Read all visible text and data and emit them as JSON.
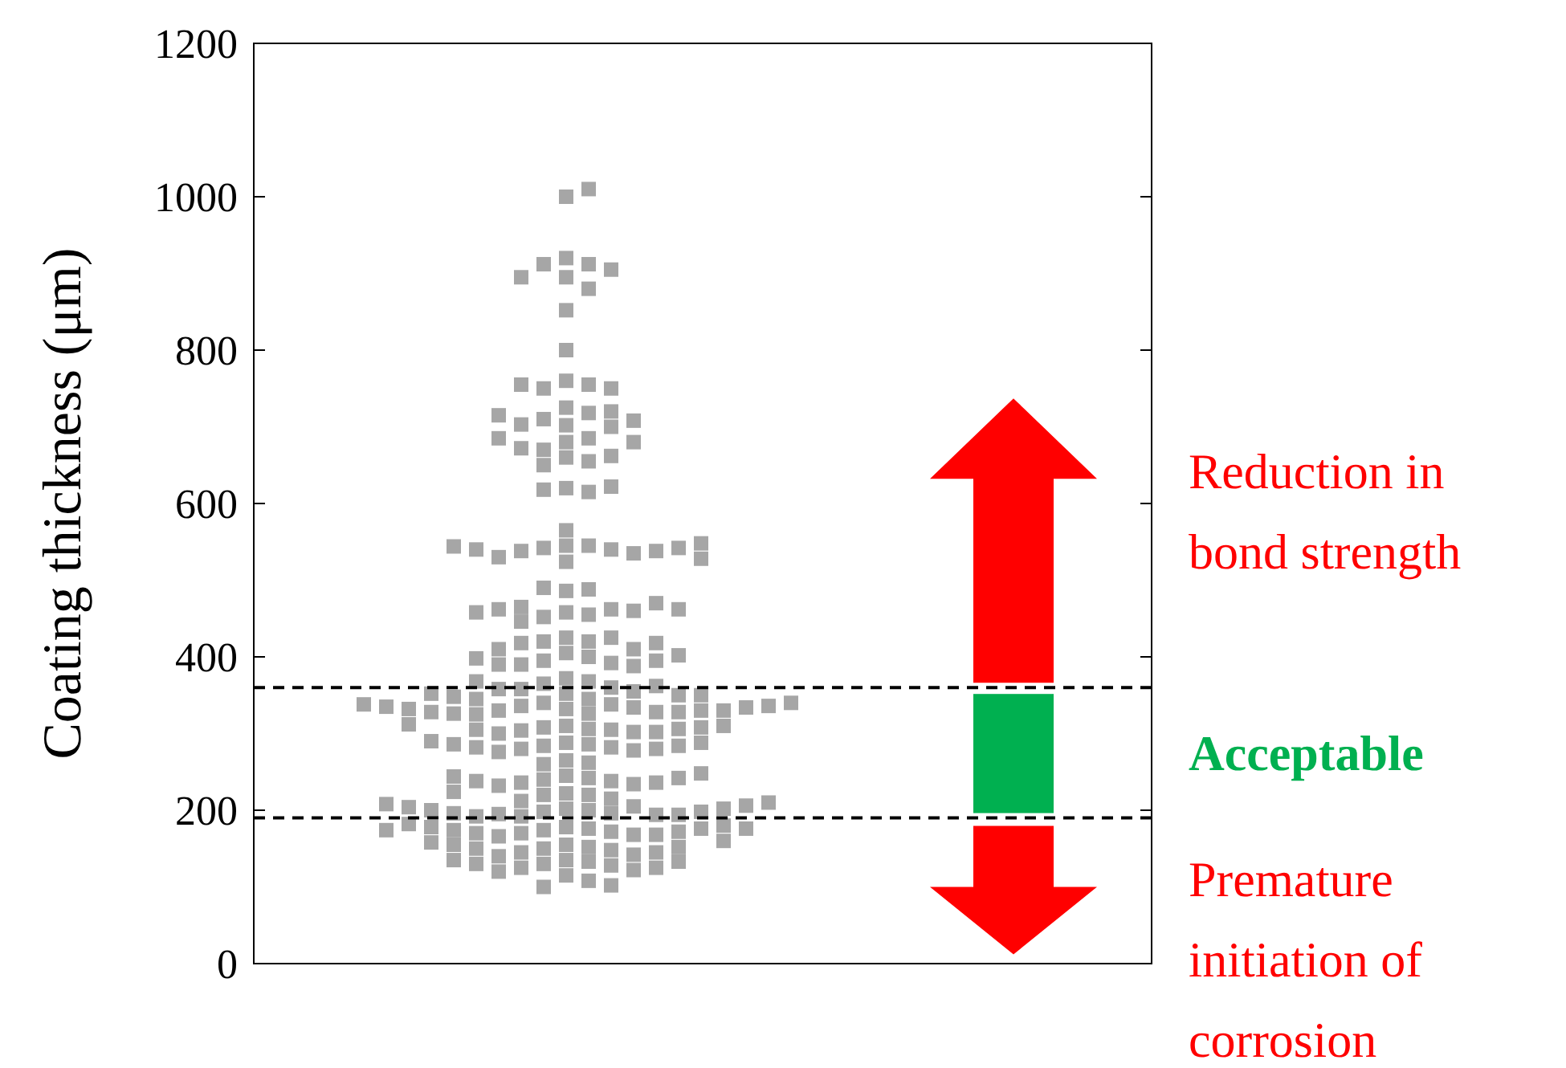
{
  "chart_data": {
    "type": "scatter",
    "ylabel": "Coating thickness (μm)",
    "ylim": [
      0,
      1200
    ],
    "yticks": [
      0,
      200,
      400,
      600,
      800,
      1000,
      1200
    ],
    "tick_labels": "y",
    "marker": "square",
    "categories": [
      null
    ],
    "series": [
      {
        "color": "#a6a6a6",
        "x": [
          null,
          null,
          null,
          null,
          null,
          null,
          null,
          null,
          null,
          null,
          null,
          null,
          null,
          null,
          null,
          null,
          null,
          null,
          null,
          null,
          null,
          null,
          null,
          null,
          null,
          null,
          null,
          null,
          null,
          null,
          null,
          null,
          null,
          null,
          null,
          null,
          null,
          null,
          null,
          null,
          null,
          null,
          null,
          null,
          null,
          null,
          null,
          null,
          null,
          null,
          null,
          null,
          null,
          null,
          null,
          null,
          null,
          null,
          null,
          null,
          null,
          null,
          null,
          null,
          null,
          null,
          null,
          null,
          null,
          null,
          null,
          null,
          null,
          null,
          null,
          null,
          null,
          null,
          null,
          null,
          null,
          null,
          null,
          null,
          null,
          null,
          null,
          null,
          null,
          null,
          null,
          null,
          null,
          null,
          null,
          null,
          null,
          null,
          null,
          null,
          null,
          null,
          null,
          null,
          null,
          null,
          null,
          null,
          null,
          null,
          null,
          null,
          null,
          null,
          null,
          null,
          null,
          null,
          null,
          null,
          null,
          null,
          null,
          null,
          null,
          null,
          null,
          null,
          null,
          null,
          null,
          null,
          null,
          null,
          null,
          null,
          null,
          null,
          null,
          null,
          null,
          null,
          null,
          null,
          null,
          null,
          null,
          null,
          null,
          null,
          null,
          null,
          null,
          null,
          null,
          null,
          null,
          null,
          null,
          null,
          null,
          null,
          null,
          null,
          null,
          null,
          null,
          null,
          null,
          null,
          null,
          null,
          null,
          null,
          null,
          null,
          null,
          null,
          null,
          null,
          null,
          null,
          null,
          null,
          null,
          null,
          null,
          null,
          null,
          null,
          null,
          null,
          null,
          null,
          null,
          null,
          null,
          null,
          null,
          null,
          null,
          null,
          null,
          null,
          null,
          null,
          null,
          null,
          null,
          null,
          null,
          null,
          null,
          null,
          null,
          null,
          null,
          null,
          null,
          null,
          null,
          null,
          null,
          null,
          null,
          null,
          null,
          null,
          null,
          null,
          null,
          null
        ],
        "values": [
          1000,
          1010,
          920,
          912,
          912,
          905,
          895,
          895,
          880,
          852,
          800,
          760,
          755,
          750,
          750,
          755,
          725,
          718,
          710,
          702,
          700,
          703,
          708,
          715,
          720,
          685,
          680,
          670,
          660,
          655,
          650,
          662,
          672,
          680,
          685,
          620,
          615,
          618,
          622,
          565,
          545,
          545,
          542,
          540,
          538,
          535,
          530,
          538,
          540,
          542,
          544,
          548,
          524,
          528,
          486,
          488,
          490,
          458,
          455,
          452,
          462,
          465,
          460,
          462,
          470,
          458,
          462,
          446,
          425,
          420,
          420,
          425,
          418,
          410,
          405,
          400,
          395,
          392,
          390,
          388,
          390,
          395,
          398,
          402,
          410,
          418,
          372,
          368,
          365,
          360,
          358,
          355,
          352,
          358,
          362,
          368,
          350,
          345,
          340,
          345,
          348,
          350,
          352,
          338,
          336,
          334,
          332,
          330,
          328,
          326,
          325,
          328,
          330,
          326,
          328,
          330,
          332,
          334,
          335,
          336,
          338,
          340,
          310,
          308,
          306,
          305,
          304,
          302,
          300,
          302,
          305,
          306,
          308,
          310,
          312,
          288,
          286,
          284,
          282,
          280,
          278,
          276,
          280,
          282,
          284,
          286,
          288,
          290,
          265,
          262,
          260,
          245,
          242,
          240,
          238,
          236,
          234,
          232,
          236,
          238,
          242,
          244,
          248,
          222,
          220,
          220,
          224,
          215,
          212,
          205,
          202,
          200,
          198,
          196,
          195,
          194,
          192,
          192,
          194,
          196,
          198,
          200,
          202,
          204,
          206,
          208,
          210,
          178,
          176,
          174,
          172,
          170,
          168,
          166,
          168,
          170,
          172,
          174,
          176,
          178,
          180,
          182,
          176,
          174,
          155,
          152,
          150,
          148,
          145,
          142,
          140,
          145,
          150,
          152,
          155,
          158,
          160,
          135,
          133,
          130,
          128,
          125,
          122,
          120,
          125,
          130,
          133,
          135,
          115,
          108,
          100,
          102
        ]
      }
    ],
    "ref_lines": [
      {
        "axis": "y",
        "value": 360,
        "color": "#000000",
        "line_style": "dashed"
      },
      {
        "axis": "y",
        "value": 190,
        "color": "#000000",
        "line_style": "dashed"
      }
    ],
    "annotations": [
      "Reduction in bond strength",
      "Acceptable",
      "Premature initiation of corrosion"
    ]
  }
}
